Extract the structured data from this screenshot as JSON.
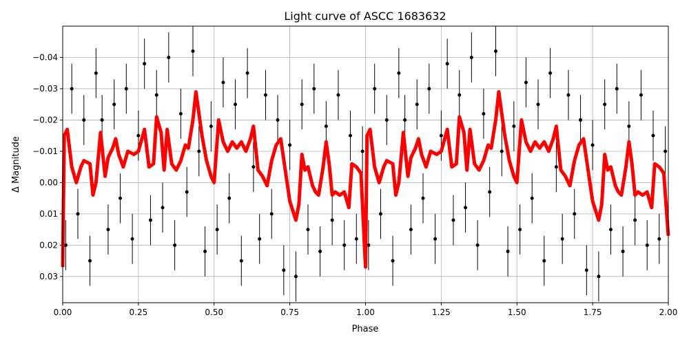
{
  "chart_data": {
    "type": "scatter",
    "title": "Light curve of ASCC 1683632",
    "x_label": "Phase",
    "y_label": "Δ Magnitude",
    "xlim": [
      0,
      2
    ],
    "ylim": [
      0.0384,
      -0.05
    ],
    "xticks": [
      {
        "value": 0,
        "label": "0.00"
      },
      {
        "value": 0.25,
        "label": "0.25"
      },
      {
        "value": 0.5,
        "label": "0.50"
      },
      {
        "value": 0.75,
        "label": "0.75"
      },
      {
        "value": 1,
        "label": "1.00"
      },
      {
        "value": 1.25,
        "label": "1.25"
      },
      {
        "value": 1.5,
        "label": "1.50"
      },
      {
        "value": 1.75,
        "label": "1.75"
      },
      {
        "value": 2,
        "label": "2.00"
      }
    ],
    "yticks": [
      {
        "value": -0.04,
        "label": "−0.04"
      },
      {
        "value": -0.03,
        "label": "−0.03"
      },
      {
        "value": -0.02,
        "label": "−0.02"
      },
      {
        "value": -0.01,
        "label": "−0.01"
      },
      {
        "value": 0,
        "label": "0.00"
      },
      0.01,
      0.02,
      0.03
    ],
    "grid": true,
    "series": [
      {
        "type": "scatter",
        "color": "#000000",
        "error": 0.008,
        "x": [
          0.01,
          0.03,
          0.05,
          0.07,
          0.09,
          0.11,
          0.13,
          0.15,
          0.17,
          0.19,
          0.21,
          0.23,
          0.25,
          0.27,
          0.29,
          0.31,
          0.33,
          0.35,
          0.37,
          0.39,
          0.41,
          0.43,
          0.45,
          0.47,
          0.49,
          0.51,
          0.53,
          0.55,
          0.57,
          0.59,
          0.61,
          0.63,
          0.65,
          0.67,
          0.69,
          0.71,
          0.73,
          0.75,
          0.77,
          0.79,
          0.81,
          0.83,
          0.85,
          0.87,
          0.89,
          0.91,
          0.93,
          0.95,
          0.97,
          0.99,
          1.01,
          1.03,
          1.05,
          1.07,
          1.09,
          1.11,
          1.13,
          1.15,
          1.17,
          1.19,
          1.21,
          1.23,
          1.25,
          1.27,
          1.29,
          1.31,
          1.33,
          1.35,
          1.37,
          1.39,
          1.41,
          1.43,
          1.45,
          1.47,
          1.49,
          1.51,
          1.53,
          1.55,
          1.57,
          1.59,
          1.61,
          1.63,
          1.65,
          1.67,
          1.69,
          1.71,
          1.73,
          1.75,
          1.77,
          1.79,
          1.81,
          1.83,
          1.85,
          1.87,
          1.89,
          1.91,
          1.93,
          1.95,
          1.97,
          1.99
        ],
        "values": [
          0.02,
          -0.03,
          0.01,
          -0.02,
          0.025,
          -0.035,
          -0.02,
          0.015,
          -0.025,
          0.005,
          -0.03,
          0.018,
          -0.015,
          -0.038,
          0.012,
          -0.028,
          0.008,
          -0.04,
          0.02,
          -0.022,
          0.003,
          -0.042,
          -0.01,
          0.022,
          -0.018,
          0.015,
          -0.032,
          0.005,
          -0.025,
          0.025,
          -0.035,
          -0.005,
          0.018,
          -0.028,
          0.01,
          -0.02,
          0.028,
          -0.012,
          0.03,
          -0.025,
          0.015,
          -0.03,
          0.022,
          -0.018,
          0.012,
          -0.028,
          0.02,
          -0.015,
          0.018,
          -0.01,
          0.02,
          -0.03,
          0.01,
          -0.02,
          0.025,
          -0.035,
          -0.02,
          0.015,
          -0.025,
          0.005,
          -0.03,
          0.018,
          -0.015,
          -0.038,
          0.012,
          -0.028,
          0.008,
          -0.04,
          0.02,
          -0.022,
          0.003,
          -0.042,
          -0.01,
          0.022,
          -0.018,
          0.015,
          -0.032,
          0.005,
          -0.025,
          0.025,
          -0.035,
          -0.005,
          0.018,
          -0.028,
          0.01,
          -0.02,
          0.028,
          -0.012,
          0.03,
          -0.025,
          0.015,
          -0.03,
          0.022,
          -0.018,
          0.012,
          -0.028,
          0.02,
          -0.015,
          0.018,
          -0.01
        ]
      },
      {
        "type": "line",
        "color": "#ff0000",
        "x": [
          0,
          0.005,
          0.015,
          0.03,
          0.045,
          0.06,
          0.07,
          0.09,
          0.1,
          0.11,
          0.125,
          0.14,
          0.15,
          0.165,
          0.175,
          0.185,
          0.2,
          0.215,
          0.235,
          0.25,
          0.27,
          0.285,
          0.3,
          0.31,
          0.325,
          0.335,
          0.345,
          0.36,
          0.375,
          0.39,
          0.405,
          0.415,
          0.43,
          0.44,
          0.46,
          0.475,
          0.49,
          0.5,
          0.515,
          0.53,
          0.545,
          0.56,
          0.575,
          0.59,
          0.605,
          0.62,
          0.63,
          0.645,
          0.66,
          0.675,
          0.69,
          0.705,
          0.72,
          0.735,
          0.75,
          0.77,
          0.78,
          0.79,
          0.8,
          0.81,
          0.825,
          0.835,
          0.845,
          0.86,
          0.87,
          0.88,
          0.89,
          0.9,
          0.915,
          0.93,
          0.945,
          0.955,
          0.97,
          0.985,
          1,
          1.005,
          1.015,
          1.03,
          1.045,
          1.06,
          1.07,
          1.09,
          1.1,
          1.11,
          1.125,
          1.14,
          1.15,
          1.165,
          1.175,
          1.185,
          1.2,
          1.215,
          1.235,
          1.25,
          1.27,
          1.285,
          1.3,
          1.31,
          1.325,
          1.335,
          1.345,
          1.36,
          1.375,
          1.39,
          1.405,
          1.415,
          1.43,
          1.44,
          1.46,
          1.475,
          1.49,
          1.5,
          1.515,
          1.53,
          1.545,
          1.56,
          1.575,
          1.59,
          1.605,
          1.62,
          1.63,
          1.645,
          1.66,
          1.675,
          1.69,
          1.705,
          1.72,
          1.735,
          1.75,
          1.77,
          1.78,
          1.79,
          1.8,
          1.81,
          1.825,
          1.835,
          1.845,
          1.86,
          1.87,
          1.88,
          1.89,
          1.9,
          1.915,
          1.93,
          1.945,
          1.955,
          1.97,
          1.985,
          2
        ],
        "values": [
          0.027,
          -0.015,
          -0.017,
          -0.005,
          0,
          -0.005,
          -0.007,
          -0.006,
          0.004,
          0,
          -0.016,
          -0.002,
          -0.008,
          -0.011,
          -0.014,
          -0.009,
          -0.005,
          -0.01,
          -0.009,
          -0.01,
          -0.017,
          -0.005,
          -0.006,
          -0.021,
          -0.016,
          -0.004,
          -0.017,
          -0.006,
          -0.004,
          -0.007,
          -0.012,
          -0.011,
          -0.02,
          -0.029,
          -0.015,
          -0.007,
          -0.002,
          0,
          -0.02,
          -0.013,
          -0.01,
          -0.013,
          -0.011,
          -0.013,
          -0.01,
          -0.014,
          -0.018,
          -0.004,
          -0.002,
          0.001,
          -0.007,
          -0.012,
          -0.014,
          -0.004,
          0.006,
          0.012,
          0.007,
          -0.009,
          -0.004,
          -0.005,
          0.001,
          0.003,
          0.004,
          -0.005,
          -0.013,
          -0.006,
          0.004,
          0.003,
          0.004,
          0.003,
          0.008,
          -0.006,
          -0.005,
          -0.003,
          0.027,
          -0.015,
          -0.017,
          -0.005,
          0,
          -0.005,
          -0.007,
          -0.006,
          0.004,
          0,
          -0.016,
          -0.002,
          -0.008,
          -0.011,
          -0.014,
          -0.009,
          -0.005,
          -0.01,
          -0.009,
          -0.01,
          -0.017,
          -0.005,
          -0.006,
          -0.021,
          -0.016,
          -0.004,
          -0.017,
          -0.006,
          -0.004,
          -0.007,
          -0.012,
          -0.011,
          -0.02,
          -0.029,
          -0.015,
          -0.007,
          -0.002,
          0,
          -0.02,
          -0.013,
          -0.01,
          -0.013,
          -0.011,
          -0.013,
          -0.01,
          -0.014,
          -0.018,
          -0.004,
          -0.002,
          0.001,
          -0.007,
          -0.012,
          -0.014,
          -0.004,
          0.006,
          0.012,
          0.007,
          -0.009,
          -0.004,
          -0.005,
          0.001,
          0.003,
          0.004,
          -0.005,
          -0.013,
          -0.006,
          0.004,
          0.003,
          0.004,
          0.003,
          0.008,
          -0.006,
          -0.005,
          -0.003,
          0.017
        ]
      }
    ]
  }
}
